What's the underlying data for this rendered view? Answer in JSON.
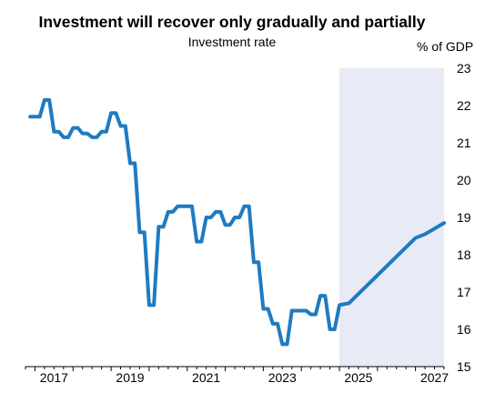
{
  "chart_data": {
    "type": "line",
    "title": "Investment will recover only gradually and partially",
    "subtitle": "Investment rate",
    "ylabel": "% of GDP",
    "xlabel": "",
    "ylim": [
      15,
      23
    ],
    "xlim": [
      2016.75,
      2027.75
    ],
    "yticks": [
      "15",
      "16",
      "17",
      "18",
      "19",
      "20",
      "21",
      "22",
      "23"
    ],
    "xticks": [
      "2017",
      "2019",
      "2021",
      "2023",
      "2025",
      "2027"
    ],
    "forecast_shade": {
      "from": 2025.0,
      "to": 2027.75
    },
    "grid": false,
    "legend": "none",
    "series": [
      {
        "color": "#1f7bc1",
        "x": [
          2016.875,
          2017.0,
          2017.125,
          2017.25,
          2017.375,
          2017.5,
          2017.625,
          2017.75,
          2017.875,
          2018.0,
          2018.125,
          2018.25,
          2018.375,
          2018.5,
          2018.625,
          2018.75,
          2018.875,
          2019.0,
          2019.125,
          2019.25,
          2019.375,
          2019.5,
          2019.625,
          2019.75,
          2019.875,
          2020.0,
          2020.125,
          2020.25,
          2020.375,
          2020.5,
          2020.625,
          2020.75,
          2020.875,
          2021.0,
          2021.125,
          2021.25,
          2021.375,
          2021.5,
          2021.625,
          2021.75,
          2021.875,
          2022.0,
          2022.125,
          2022.25,
          2022.375,
          2022.5,
          2022.625,
          2022.75,
          2022.875,
          2023.0,
          2023.125,
          2023.25,
          2023.375,
          2023.5,
          2023.625,
          2023.75,
          2023.875,
          2024.0,
          2024.125,
          2024.25,
          2024.375,
          2024.5,
          2024.625,
          2024.75,
          2024.875,
          2025.0,
          2025.25,
          2025.5,
          2025.75,
          2026.0,
          2026.25,
          2026.5,
          2026.75,
          2027.0,
          2027.25,
          2027.5,
          2027.75
        ],
        "values": [
          21.7,
          21.7,
          21.7,
          22.15,
          22.15,
          21.3,
          21.3,
          21.15,
          21.15,
          21.4,
          21.4,
          21.25,
          21.25,
          21.15,
          21.15,
          21.3,
          21.3,
          21.8,
          21.8,
          21.45,
          21.45,
          20.45,
          20.45,
          18.6,
          18.6,
          16.65,
          16.65,
          18.75,
          18.75,
          19.15,
          19.15,
          19.3,
          19.3,
          19.3,
          19.3,
          18.35,
          18.35,
          19.0,
          19.0,
          19.15,
          19.15,
          18.8,
          18.8,
          19.0,
          19.0,
          19.3,
          19.3,
          17.8,
          17.8,
          16.55,
          16.55,
          16.15,
          16.15,
          15.6,
          15.6,
          16.5,
          16.5,
          16.5,
          16.5,
          16.4,
          16.4,
          16.9,
          16.9,
          16.0,
          16.0,
          16.65,
          16.7,
          16.95,
          17.2,
          17.45,
          17.7,
          17.95,
          18.2,
          18.45,
          18.55,
          18.7,
          18.85
        ]
      }
    ]
  }
}
